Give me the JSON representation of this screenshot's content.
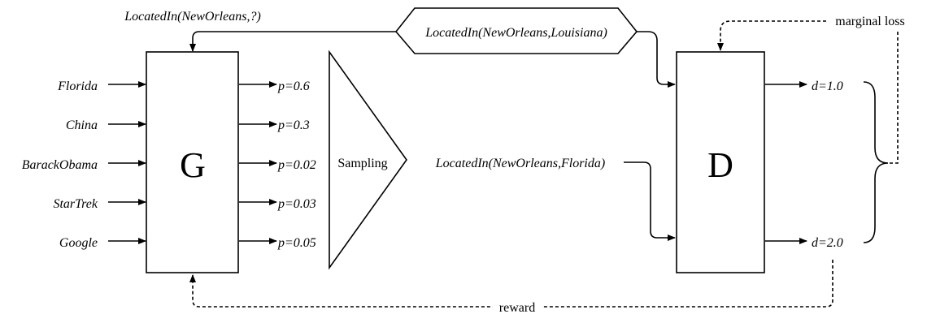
{
  "query": "LocatedIn(NewOrleans,?)",
  "true_triple": "LocatedIn(NewOrleans,Louisiana)",
  "sampled_triple": "LocatedIn(NewOrleans,Florida)",
  "generator": {
    "label": "G",
    "candidates": [
      "Florida",
      "China",
      "BarackObama",
      "StarTrek",
      "Google"
    ],
    "probabilities": [
      "p=0.6",
      "p=0.3",
      "p=0.02",
      "p=0.03",
      "p=0.05"
    ]
  },
  "sampling": {
    "label": "Sampling"
  },
  "discriminator": {
    "label": "D",
    "scores": [
      "d=1.0",
      "d=2.0"
    ]
  },
  "loss_label": "marginal loss",
  "reward_label": "reward"
}
